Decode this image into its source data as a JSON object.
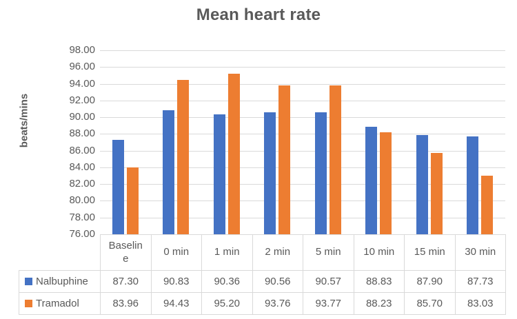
{
  "chart_data": {
    "type": "bar",
    "title": "Mean heart rate",
    "xlabel": "",
    "ylabel": "beats/mins",
    "categories": [
      "Baseline",
      "0 min",
      "1 min",
      "2 min",
      "5 min",
      "10 min",
      "15 min",
      "30 min"
    ],
    "series": [
      {
        "name": "Nalbuphine",
        "color": "#4472C4",
        "values": [
          87.3,
          90.83,
          90.36,
          90.56,
          90.57,
          88.83,
          87.9,
          87.73
        ]
      },
      {
        "name": "Tramadol",
        "color": "#ED7D31",
        "values": [
          83.96,
          94.43,
          95.2,
          93.76,
          93.77,
          88.23,
          85.7,
          83.03
        ]
      }
    ],
    "ylim": [
      76,
      98
    ],
    "ytick_step": 2,
    "tick_format_decimals": 2,
    "grid": true,
    "legend_position": "table-rows-left",
    "colors": {
      "title_text": "#595959",
      "axis_text": "#595959",
      "gridline": "#D9D9D9",
      "table_border": "#D9D9D9"
    }
  }
}
